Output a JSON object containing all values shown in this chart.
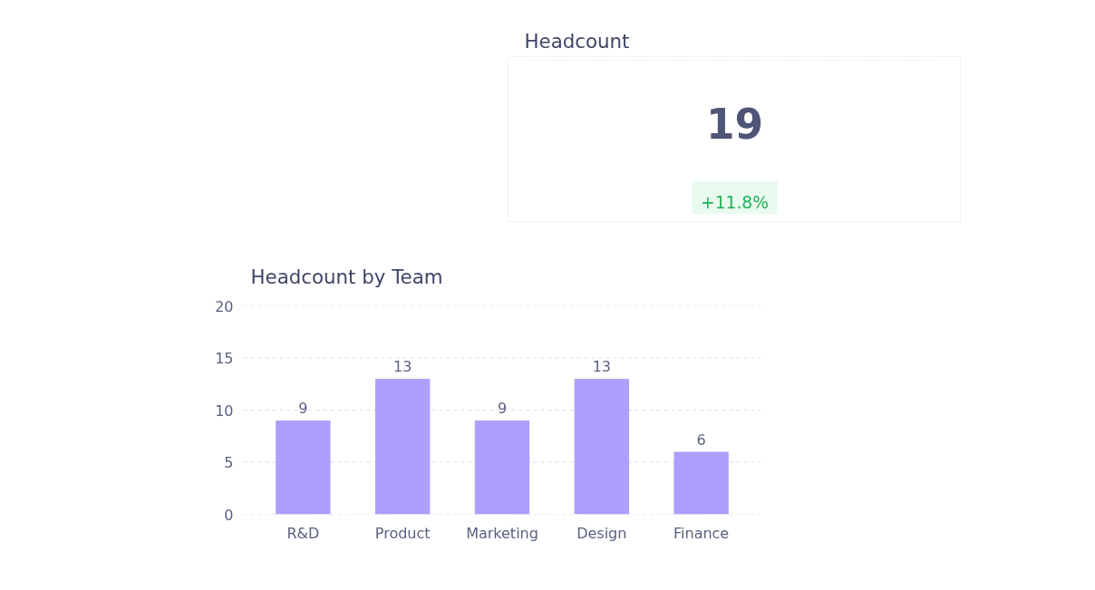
{
  "chart_data": [
    {
      "type": "other",
      "title": "Headcount",
      "annotations": [
        "19",
        "+11.8%"
      ]
    },
    {
      "type": "bar",
      "title": "Headcount by Team",
      "categories": [
        "R&D",
        "Product",
        "Marketing",
        "Design",
        "Finance"
      ],
      "values": [
        9,
        13,
        9,
        13,
        6
      ],
      "color": "#ae9ffd",
      "ylim": [
        0,
        20
      ],
      "yticks": [
        0,
        5,
        10,
        15,
        20
      ],
      "grid": "y",
      "data_labels": true
    }
  ]
}
